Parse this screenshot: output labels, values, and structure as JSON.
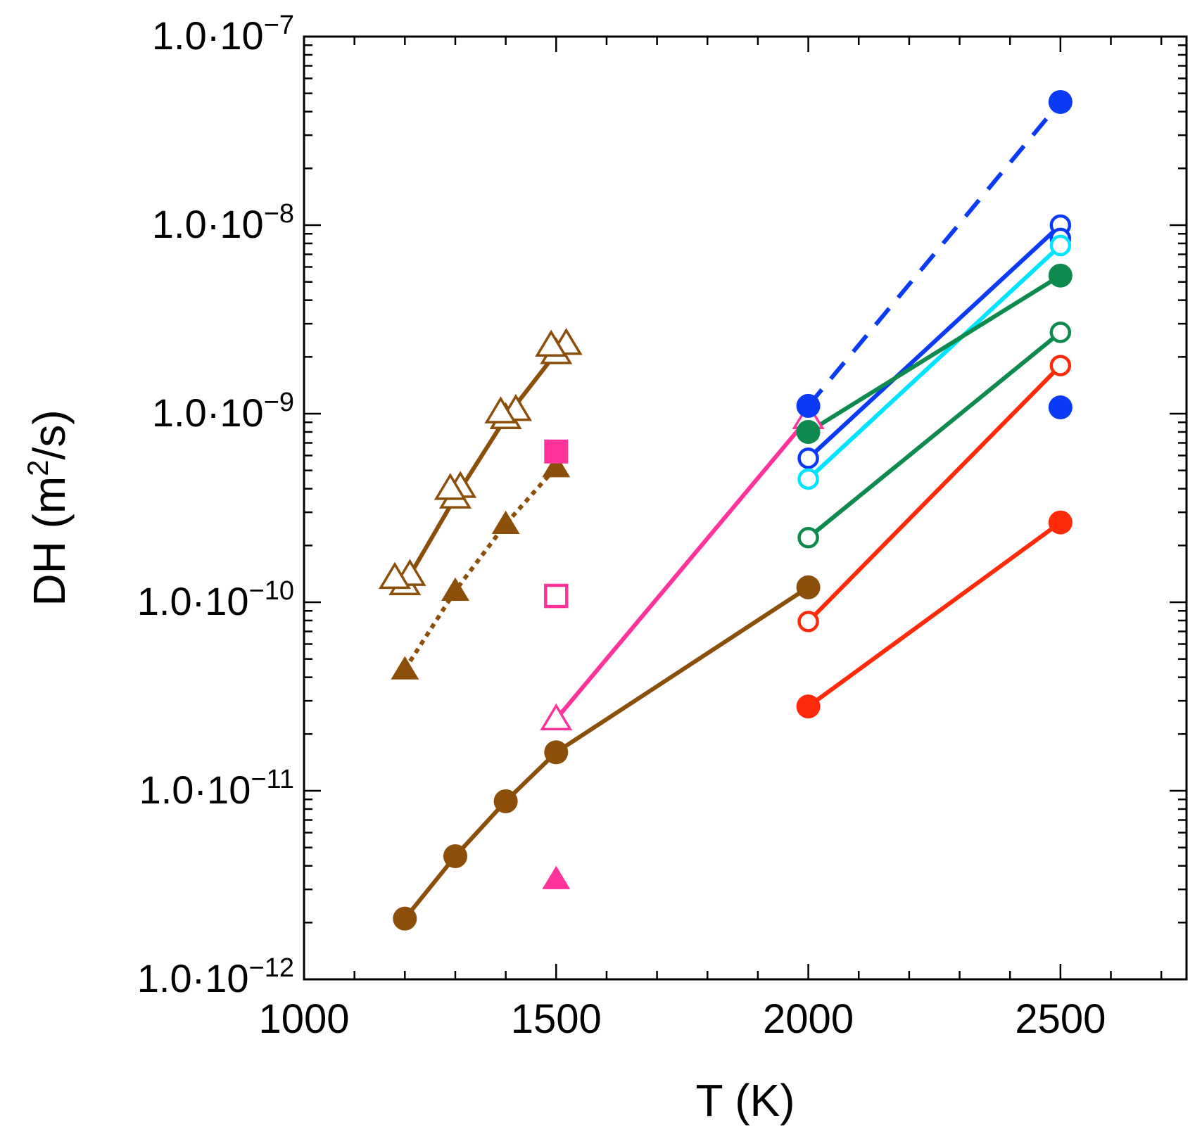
{
  "chart_data": {
    "type": "scatter",
    "xlabel": "T (K)",
    "ylabel": "DH (m²/s)",
    "xlim": [
      1000,
      2750
    ],
    "ylim": [
      1e-12,
      1e-07
    ],
    "yscale": "log",
    "x_ticks": [
      {
        "value": 1000,
        "label": "1000"
      },
      {
        "value": 1500,
        "label": "1500"
      },
      {
        "value": 2000,
        "label": "2000"
      },
      {
        "value": 2500,
        "label": "2500"
      }
    ],
    "y_ticks": [
      {
        "value": 1e-12,
        "mantissa": "1.0·10",
        "exponent": "−12"
      },
      {
        "value": 1e-11,
        "mantissa": "1.0·10",
        "exponent": "−11"
      },
      {
        "value": 1e-10,
        "mantissa": "1.0·10",
        "exponent": "−10"
      },
      {
        "value": 1e-09,
        "mantissa": "1.0·10",
        "exponent": "−9"
      },
      {
        "value": 1e-08,
        "mantissa": "1.0·10",
        "exponent": "−8"
      },
      {
        "value": 1e-07,
        "mantissa": "1.0·10",
        "exponent": "−7"
      }
    ],
    "grid": false,
    "legend": "none",
    "series": [
      {
        "color": "#8B4F0A",
        "marker": "circle",
        "fill": "filled",
        "line": "solid",
        "points": [
          [
            1200,
            2.1e-12
          ],
          [
            1300,
            4.5e-12
          ],
          [
            1400,
            8.8e-12
          ],
          [
            1500,
            1.6e-11
          ],
          [
            2000,
            1.2e-10
          ]
        ]
      },
      {
        "color": "#8B4F0A",
        "marker": "triangle",
        "fill": "filled",
        "line": "dotted",
        "points": [
          [
            1200,
            4.4e-11
          ],
          [
            1300,
            1.15e-10
          ],
          [
            1400,
            2.6e-10
          ],
          [
            1500,
            5.2e-10
          ]
        ]
      },
      {
        "color": "#8B4F0A",
        "marker": "triangle",
        "fill": "open",
        "line": "solid",
        "points": [
          [
            1200,
            1.25e-10
          ],
          [
            1300,
            3.6e-10
          ],
          [
            1400,
            9.5e-10
          ],
          [
            1500,
            2.1e-09
          ]
        ]
      },
      {
        "color": "#8B4F0A",
        "marker": "triangle",
        "fill": "open",
        "line": "none",
        "points": [
          [
            1210,
            1.4e-10
          ],
          [
            1310,
            4.1e-10
          ],
          [
            1420,
            1.05e-09
          ],
          [
            1520,
            2.35e-09
          ],
          [
            1180,
            1.35e-10
          ],
          [
            1290,
            4e-10
          ],
          [
            1390,
            1.02e-09
          ],
          [
            1490,
            2.3e-09
          ]
        ]
      },
      {
        "color": "#FF3399",
        "marker": "triangle",
        "fill": "open",
        "line": "solid",
        "points": [
          [
            1500,
            2.4e-11
          ],
          [
            2000,
            9.5e-10
          ]
        ]
      },
      {
        "color": "#FF3399",
        "marker": "square",
        "fill": "filled",
        "line": "none",
        "points": [
          [
            1500,
            6.3e-10
          ]
        ]
      },
      {
        "color": "#FF3399",
        "marker": "square",
        "fill": "open",
        "line": "none",
        "points": [
          [
            1500,
            1.08e-10
          ]
        ]
      },
      {
        "color": "#FF3399",
        "marker": "triangle",
        "fill": "filled",
        "line": "none",
        "points": [
          [
            1500,
            3.4e-12
          ]
        ]
      },
      {
        "color": "#0A3AF5",
        "marker": "circle",
        "fill": "filled",
        "line": "dashed",
        "points": [
          [
            2000,
            1.1e-09
          ],
          [
            2500,
            4.5e-08
          ]
        ]
      },
      {
        "color": "#0A3AF5",
        "marker": "circle",
        "fill": "filled",
        "line": "none",
        "points": [
          [
            2500,
            1.08e-09
          ]
        ]
      },
      {
        "color": "#0A3AF5",
        "marker": "circle",
        "fill": "open",
        "line": "solid",
        "points": [
          [
            2000,
            5.8e-10
          ],
          [
            2500,
            1e-08
          ]
        ]
      },
      {
        "color": "#0A3AF5",
        "marker": "circle",
        "fill": "open",
        "line": "none",
        "points": [
          [
            2500,
            8.5e-09
          ]
        ]
      },
      {
        "color": "#00E5FF",
        "marker": "circle",
        "fill": "open",
        "line": "solid",
        "points": [
          [
            2000,
            4.5e-10
          ],
          [
            2500,
            7.8e-09
          ]
        ]
      },
      {
        "color": "#0E8A4E",
        "marker": "circle",
        "fill": "filled",
        "line": "solid",
        "points": [
          [
            2000,
            8e-10
          ],
          [
            2500,
            5.4e-09
          ]
        ]
      },
      {
        "color": "#0E8A4E",
        "marker": "circle",
        "fill": "open",
        "line": "solid",
        "points": [
          [
            2000,
            2.2e-10
          ],
          [
            2500,
            2.7e-09
          ]
        ]
      },
      {
        "color": "#FF2A0A",
        "marker": "circle",
        "fill": "open",
        "line": "solid",
        "points": [
          [
            2000,
            7.9e-11
          ],
          [
            2500,
            1.8e-09
          ]
        ]
      },
      {
        "color": "#FF2A0A",
        "marker": "circle",
        "fill": "filled",
        "line": "solid",
        "points": [
          [
            2000,
            2.8e-11
          ],
          [
            2500,
            2.65e-10
          ]
        ]
      }
    ]
  }
}
